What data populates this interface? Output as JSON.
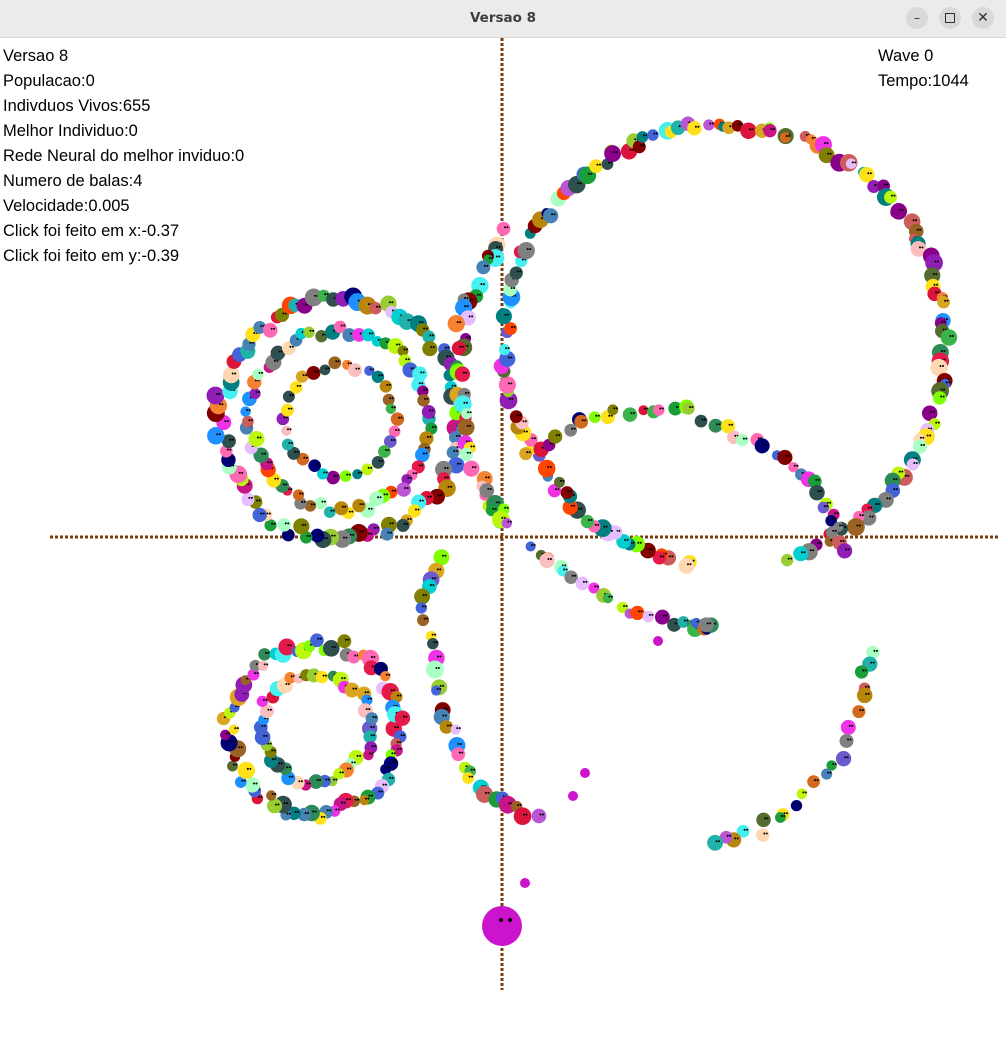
{
  "window": {
    "title": "Versao 8"
  },
  "hud_left": [
    "Versao 8",
    "Populacao:0",
    "Indivduos Vivos:655",
    "Melhor Individuo:0",
    "Rede Neural do melhor inviduo:0",
    "Numero de balas:4",
    "Velocidade:0.005",
    "Click foi feito em x:-0.37",
    "Click foi feito em y:-0.39"
  ],
  "hud_right": [
    "Wave 0",
    "Tempo:1044"
  ],
  "colors": {
    "axis": "#7a3b0c",
    "player": "#cc14cc",
    "bullet": "#cc14cc"
  },
  "icons": [
    "minimize-icon",
    "maximize-icon",
    "close-icon"
  ]
}
